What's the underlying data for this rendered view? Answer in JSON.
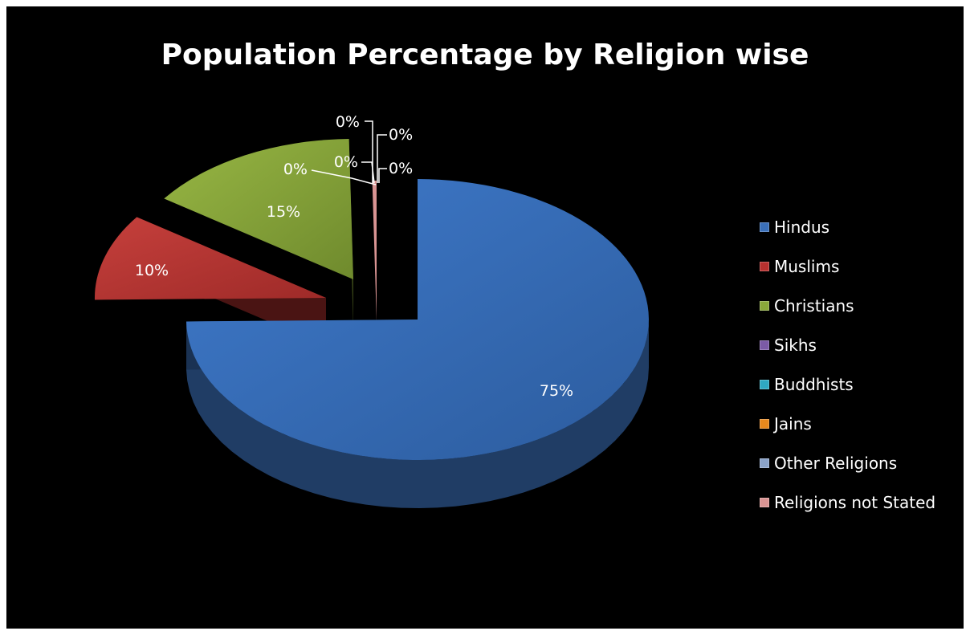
{
  "chart_data": {
    "type": "pie",
    "title": "Population Percentage by Religion wise",
    "categories": [
      "Hindus",
      "Muslims",
      "Christians",
      "Sikhs",
      "Buddhists",
      "Jains",
      "Other Religions",
      "Religions not Stated"
    ],
    "values": [
      75,
      10,
      15,
      0,
      0,
      0,
      0,
      0.3
    ],
    "data_labels": [
      "75%",
      "10%",
      "15%",
      "0%",
      "0%",
      "0%",
      "0%",
      "0%"
    ],
    "legend_position": "right",
    "style": "3d exploded pie",
    "background_color": "#000000",
    "colors": [
      "#3a6fb8",
      "#b8312f",
      "#8aa83a",
      "#7b5aa6",
      "#2fa8c2",
      "#e8891d",
      "#8aa2c8",
      "#d99493"
    ]
  }
}
